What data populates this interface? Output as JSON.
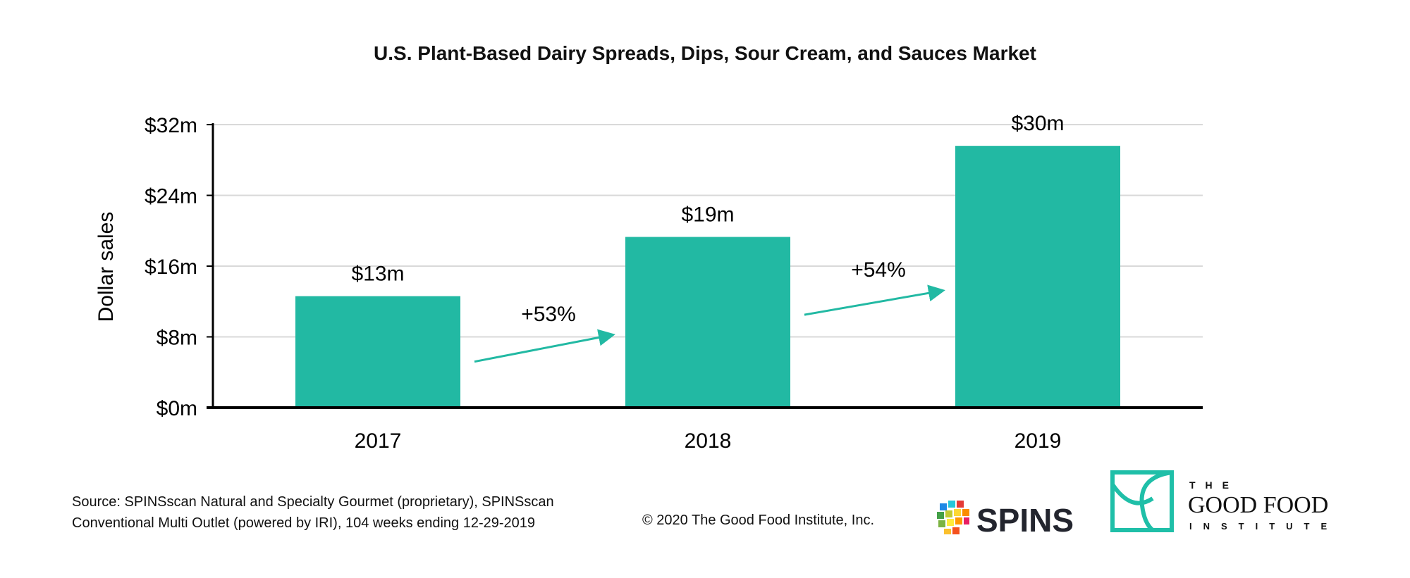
{
  "chart_data": {
    "type": "bar",
    "title": "U.S. Plant-Based Dairy Spreads, Dips, Sour Cream, and Sauces Market",
    "xlabel": "",
    "ylabel": "Dollar sales",
    "categories": [
      "2017",
      "2018",
      "2019"
    ],
    "values": [
      12.6,
      19.3,
      29.6
    ],
    "data_labels": [
      "$13m",
      "$19m",
      "$30m"
    ],
    "ylim": [
      0,
      32
    ],
    "yticks": [
      0,
      8,
      16,
      24,
      32
    ],
    "ytick_labels": [
      "$0m",
      "$8m",
      "$16m",
      "$24m",
      "$32m"
    ],
    "grid": true,
    "bar_color": "#22B9A3",
    "annotations": [
      {
        "text": "+53%",
        "from": "2017",
        "to": "2018"
      },
      {
        "text": "+54%",
        "from": "2018",
        "to": "2019"
      }
    ]
  },
  "footer": {
    "source_line1": "Source: SPINSscan Natural and Specialty Gourmet (proprietary), SPINSscan",
    "source_line2": "Conventional Multi Outlet (powered by IRI), 104 weeks ending 12-29-2019",
    "copyright": "© 2020 The Good Food Institute, Inc."
  },
  "logos": {
    "spins": "SPINS",
    "gfi_the": "THE",
    "gfi_main": "GOOD FOOD",
    "gfi_sub": "INSTITUTE"
  }
}
